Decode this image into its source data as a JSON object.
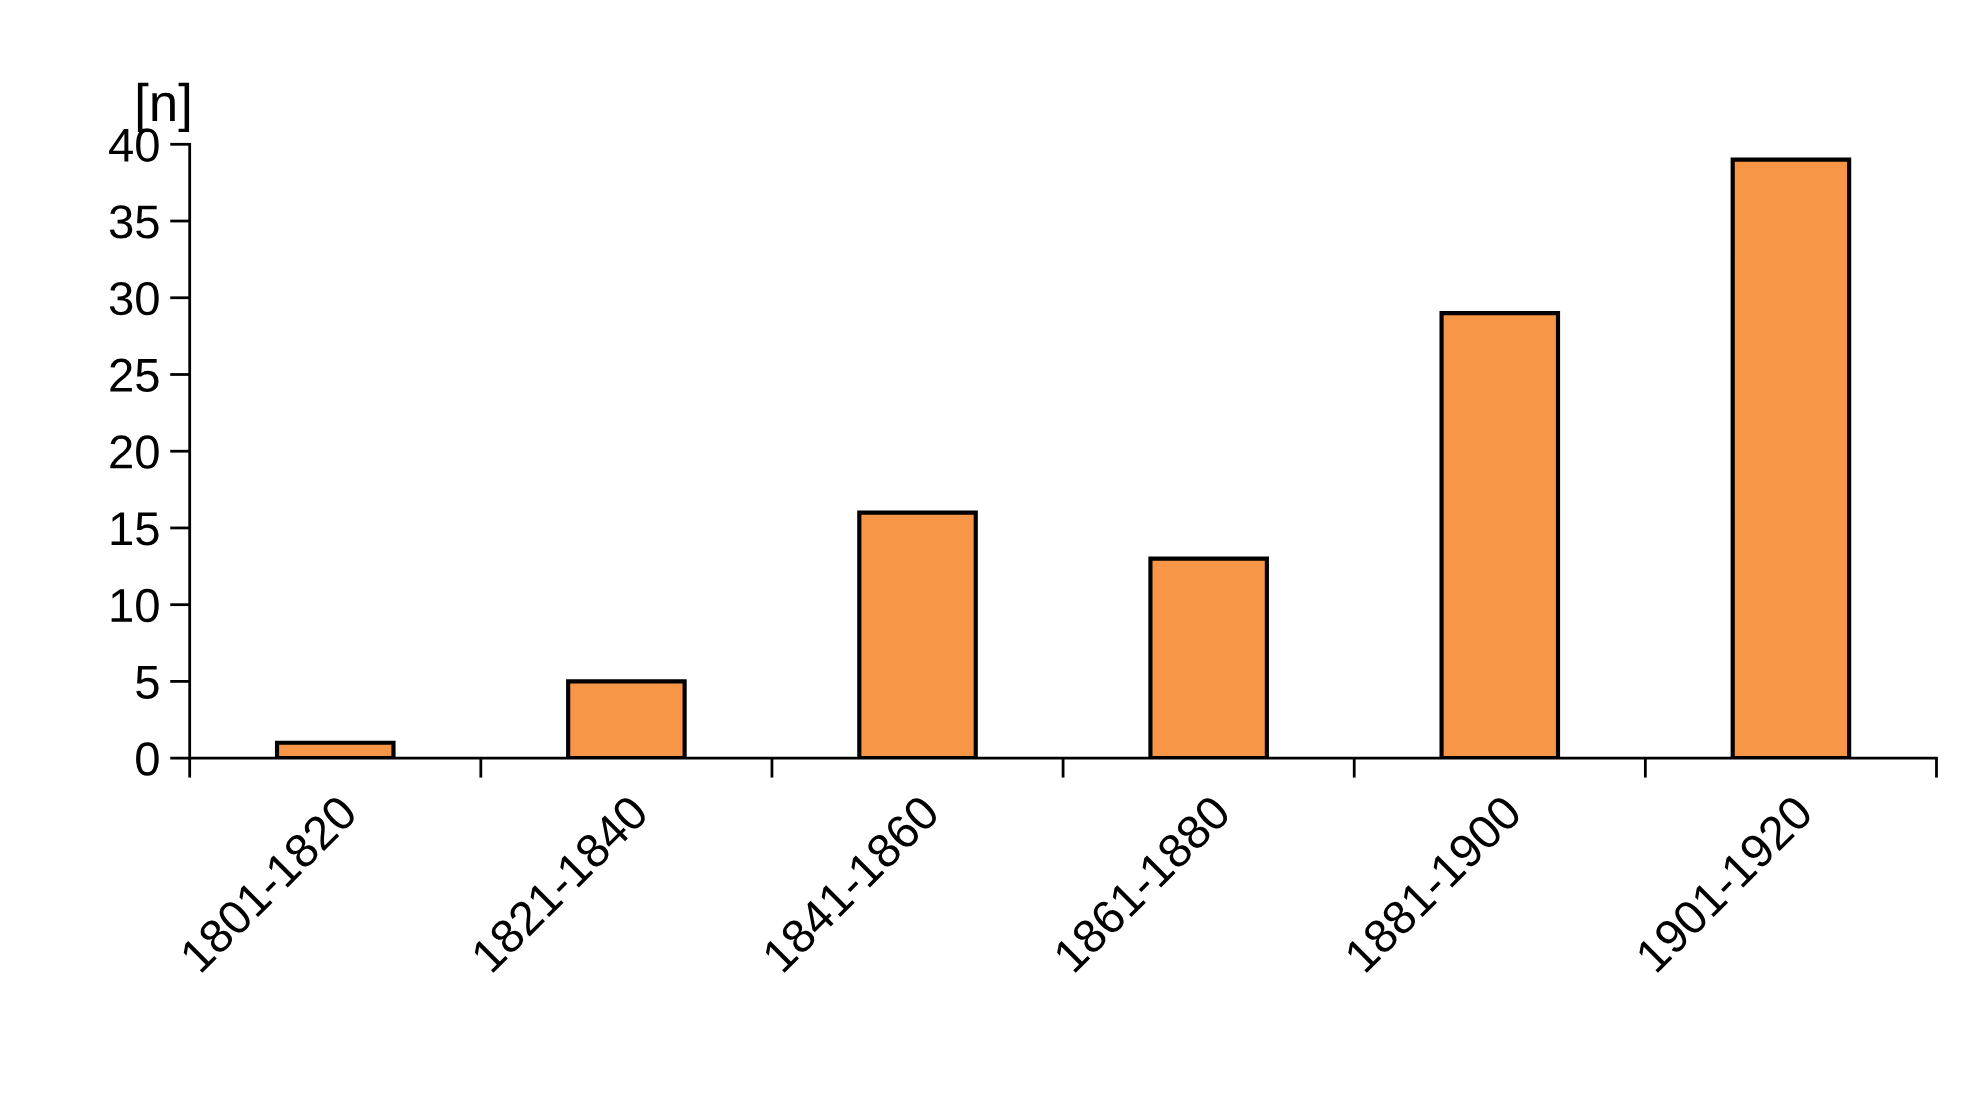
{
  "chart_data": {
    "type": "bar",
    "ylabel": "[n]",
    "categories": [
      "1801-1820",
      "1821-1840",
      "1841-1860",
      "1861-1880",
      "1881-1900",
      "1901-1920"
    ],
    "values": [
      1,
      5,
      16,
      13,
      29,
      39
    ],
    "color": "#f79646",
    "ylim": [
      0,
      40
    ],
    "yticks": [
      0,
      5,
      10,
      15,
      20,
      25,
      30,
      35,
      40
    ],
    "grid": false,
    "legend": false
  }
}
